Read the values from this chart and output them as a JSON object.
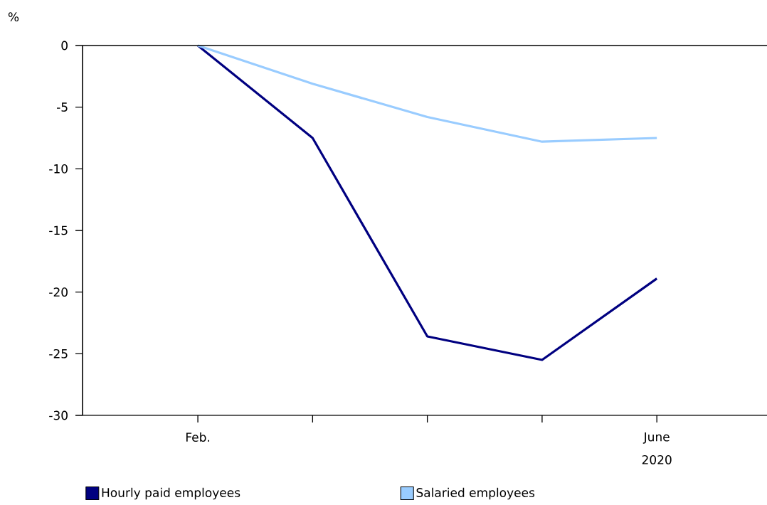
{
  "chart_data": {
    "type": "line",
    "ylabel": "%",
    "categories": [
      "Feb.",
      null,
      null,
      null,
      "June"
    ],
    "annotations": [
      "2020"
    ],
    "series": [
      {
        "name": "Hourly paid employees",
        "color": "#000080",
        "values": [
          0,
          -7.5,
          -23.6,
          -25.5,
          -18.9
        ]
      },
      {
        "name": "Salaried employees",
        "color": "#99ccff",
        "values": [
          0,
          -3.1,
          -5.8,
          -7.8,
          -7.5
        ]
      }
    ],
    "ylim": [
      -30,
      0
    ],
    "yticks": [
      -30,
      -25,
      -20,
      -15,
      -10,
      -5,
      0
    ],
    "ref_lines": [
      {
        "axis": "y",
        "value": 0
      }
    ],
    "legend": "bottom",
    "marker": "none",
    "line_style": "solid"
  }
}
